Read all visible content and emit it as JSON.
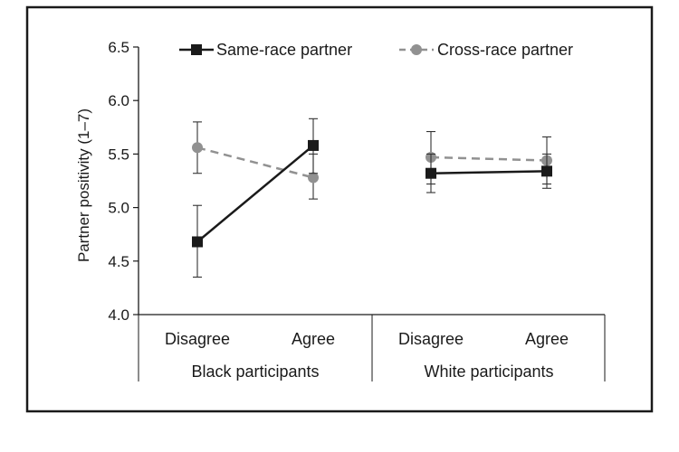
{
  "chart_data": {
    "type": "line",
    "ylabel": "Partner positivity (1–7)",
    "ylim": [
      4.0,
      6.5
    ],
    "yticks": [
      "4.0",
      "4.5",
      "5.0",
      "5.5",
      "6.0",
      "6.5"
    ],
    "grid": false,
    "legend_position": "top",
    "groups": [
      {
        "label": "Black participants",
        "categories": [
          "Disagree",
          "Agree"
        ]
      },
      {
        "label": "White participants",
        "categories": [
          "Disagree",
          "Agree"
        ]
      }
    ],
    "series": [
      {
        "name": "Same-race partner",
        "color": "#1a1a1a",
        "marker": "square",
        "line_style": "solid",
        "groups": [
          {
            "values": [
              4.68,
              5.58
            ],
            "errors": [
              [
                4.35,
                5.02
              ],
              [
                5.32,
                5.83
              ]
            ]
          },
          {
            "values": [
              5.32,
              5.34
            ],
            "errors": [
              [
                5.14,
                5.5
              ],
              [
                5.18,
                5.5
              ]
            ]
          }
        ]
      },
      {
        "name": "Cross-race partner",
        "color": "#919191",
        "marker": "circle",
        "line_style": "dashed",
        "groups": [
          {
            "values": [
              5.56,
              5.28
            ],
            "errors": [
              [
                5.32,
                5.8
              ],
              [
                5.08,
                5.5
              ]
            ]
          },
          {
            "values": [
              5.47,
              5.44
            ],
            "errors": [
              [
                5.22,
                5.71
              ],
              [
                5.22,
                5.66
              ]
            ]
          }
        ]
      }
    ]
  }
}
